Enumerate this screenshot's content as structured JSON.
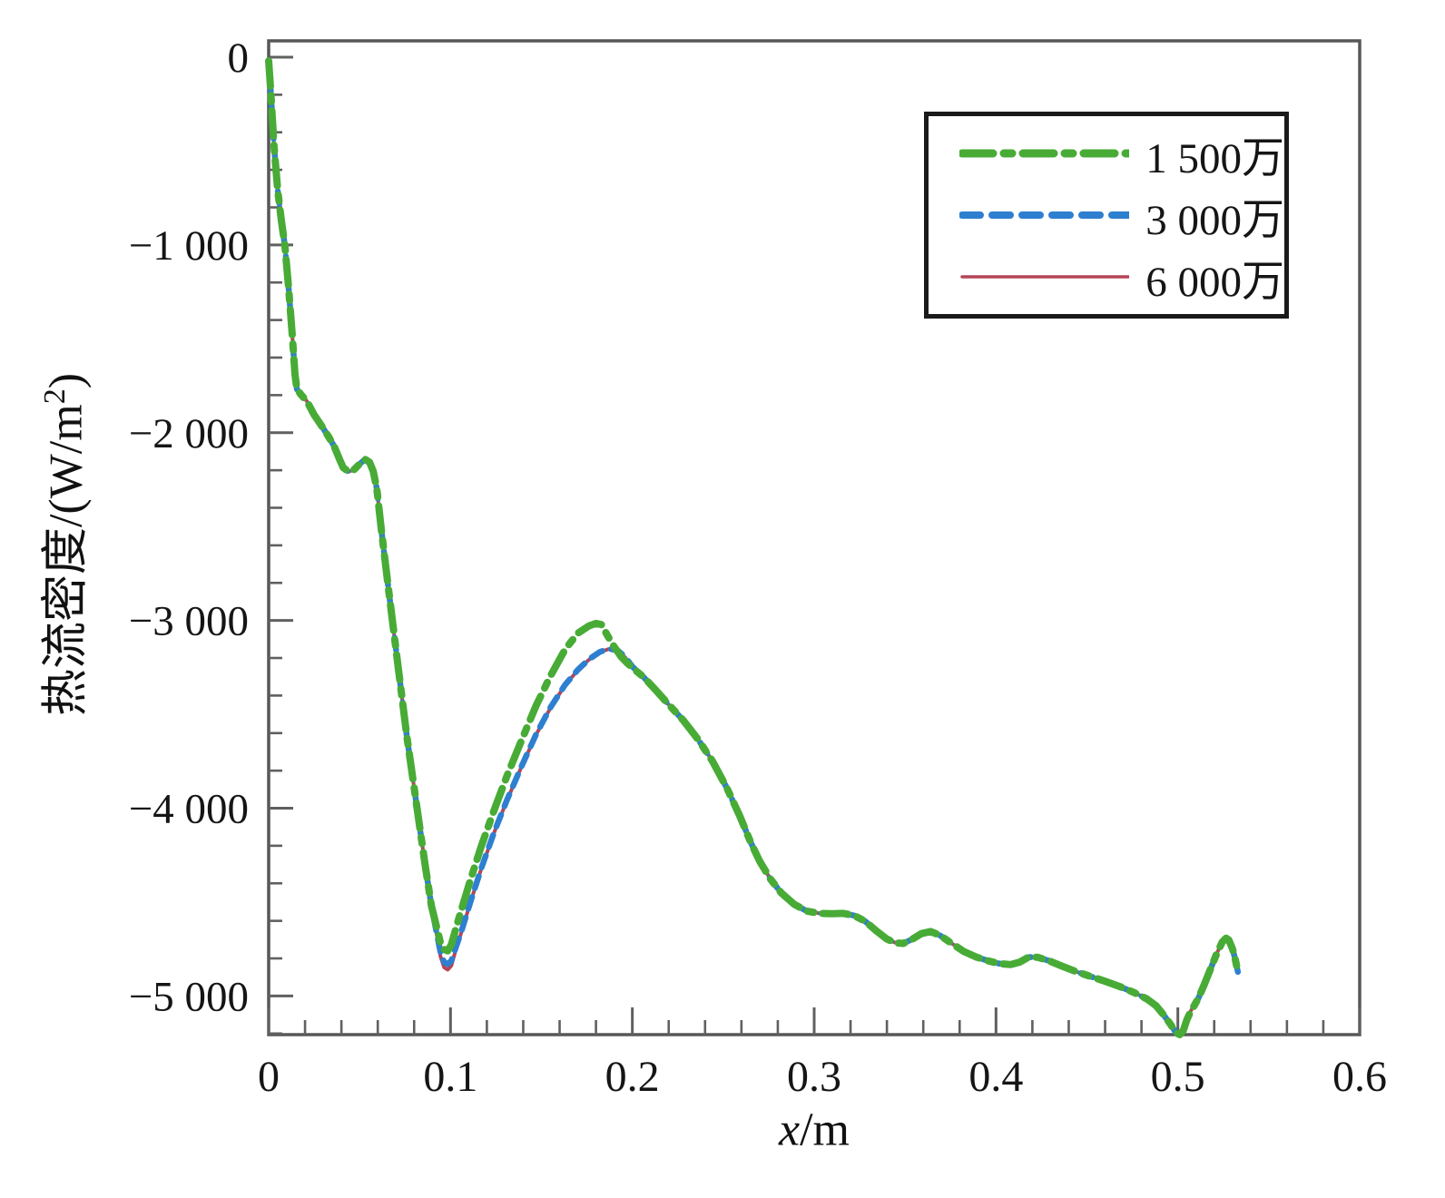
{
  "chart_data": {
    "type": "line",
    "title": "",
    "xlabel": "x/m",
    "ylabel": "热流密度/(W/m²)",
    "xlim": [
      0,
      0.6
    ],
    "ylim": [
      -5206,
      87
    ],
    "grid": false,
    "legend_position": "top-right",
    "x_axis": {
      "major_ticks": [
        {
          "value": 0,
          "label": "0"
        },
        {
          "value": 0.1,
          "label": "0.1"
        },
        {
          "value": 0.2,
          "label": "0.2"
        },
        {
          "value": 0.3,
          "label": "0.3"
        },
        {
          "value": 0.4,
          "label": "0.4"
        },
        {
          "value": 0.5,
          "label": "0.5"
        },
        {
          "value": 0.6,
          "label": "0.6"
        }
      ],
      "minor_tick_step": 0.02
    },
    "y_axis": {
      "major_ticks": [
        {
          "value": 0,
          "label": "0"
        },
        {
          "value": -1000,
          "label": "−1 000"
        },
        {
          "value": -2000,
          "label": "−2 000"
        },
        {
          "value": -3000,
          "label": "−3 000"
        },
        {
          "value": -4000,
          "label": "−4 000"
        },
        {
          "value": -5000,
          "label": "−5 000"
        }
      ],
      "minor_tick_step": 200
    },
    "segments": {
      "head": [
        [
          0.0,
          -20
        ],
        [
          0.001,
          -160
        ],
        [
          0.003,
          -480
        ],
        [
          0.005,
          -710
        ],
        [
          0.007,
          -870
        ],
        [
          0.009,
          -1010
        ],
        [
          0.011,
          -1230
        ],
        [
          0.013,
          -1480
        ],
        [
          0.0145,
          -1690
        ],
        [
          0.0155,
          -1768
        ],
        [
          0.018,
          -1800
        ],
        [
          0.021,
          -1832
        ],
        [
          0.025,
          -1905
        ],
        [
          0.029,
          -1962
        ],
        [
          0.033,
          -2022
        ],
        [
          0.036,
          -2072
        ],
        [
          0.039,
          -2142
        ],
        [
          0.041,
          -2186
        ],
        [
          0.044,
          -2208
        ],
        [
          0.047,
          -2196
        ],
        [
          0.05,
          -2167
        ],
        [
          0.053,
          -2142
        ],
        [
          0.0555,
          -2158
        ],
        [
          0.0575,
          -2205
        ],
        [
          0.0595,
          -2300
        ],
        [
          0.062,
          -2520
        ],
        [
          0.066,
          -2840
        ],
        [
          0.071,
          -3230
        ],
        [
          0.076,
          -3620
        ],
        [
          0.081,
          -3960
        ],
        [
          0.086,
          -4300
        ],
        [
          0.0895,
          -4520
        ]
      ],
      "tail": [
        [
          0.206,
          -3300
        ],
        [
          0.213,
          -3372
        ],
        [
          0.22,
          -3448
        ],
        [
          0.228,
          -3532
        ],
        [
          0.236,
          -3632
        ],
        [
          0.244,
          -3748
        ],
        [
          0.252,
          -3892
        ],
        [
          0.259,
          -4040
        ],
        [
          0.265,
          -4180
        ],
        [
          0.27,
          -4282
        ],
        [
          0.276,
          -4378
        ],
        [
          0.282,
          -4452
        ],
        [
          0.289,
          -4512
        ],
        [
          0.296,
          -4548
        ],
        [
          0.303,
          -4560
        ],
        [
          0.31,
          -4562
        ],
        [
          0.316,
          -4560
        ],
        [
          0.322,
          -4572
        ],
        [
          0.328,
          -4602
        ],
        [
          0.334,
          -4652
        ],
        [
          0.34,
          -4697
        ],
        [
          0.345,
          -4718
        ],
        [
          0.349,
          -4720
        ],
        [
          0.354,
          -4697
        ],
        [
          0.359,
          -4668
        ],
        [
          0.364,
          -4657
        ],
        [
          0.369,
          -4676
        ],
        [
          0.375,
          -4716
        ],
        [
          0.382,
          -4762
        ],
        [
          0.389,
          -4792
        ],
        [
          0.396,
          -4814
        ],
        [
          0.402,
          -4828
        ],
        [
          0.408,
          -4833
        ],
        [
          0.413,
          -4820
        ],
        [
          0.418,
          -4793
        ],
        [
          0.423,
          -4794
        ],
        [
          0.429,
          -4812
        ],
        [
          0.436,
          -4840
        ],
        [
          0.444,
          -4870
        ],
        [
          0.452,
          -4896
        ],
        [
          0.46,
          -4922
        ],
        [
          0.468,
          -4950
        ],
        [
          0.476,
          -4982
        ],
        [
          0.483,
          -5016
        ],
        [
          0.488,
          -5052
        ],
        [
          0.492,
          -5098
        ],
        [
          0.496,
          -5152
        ],
        [
          0.499,
          -5196
        ],
        [
          0.501,
          -5206
        ],
        [
          0.503,
          -5184
        ],
        [
          0.505,
          -5126
        ],
        [
          0.5075,
          -5072
        ],
        [
          0.509,
          -5052
        ],
        [
          0.5115,
          -5008
        ],
        [
          0.5145,
          -4940
        ],
        [
          0.518,
          -4856
        ],
        [
          0.5215,
          -4772
        ],
        [
          0.5245,
          -4712
        ],
        [
          0.5265,
          -4692
        ],
        [
          0.528,
          -4702
        ],
        [
          0.53,
          -4748
        ],
        [
          0.5315,
          -4802
        ],
        [
          0.533,
          -4872
        ]
      ]
    },
    "series": [
      {
        "name": "1 500万",
        "color": "#48ab36",
        "style": "dash-dot",
        "line_width": 8,
        "dash": "28 10 7 10",
        "legend_stroke": 9,
        "legend_dash": "34 12 9 12",
        "mid": [
          [
            0.092,
            -4618
          ],
          [
            0.0945,
            -4718
          ],
          [
            0.0965,
            -4752
          ],
          [
            0.0985,
            -4760
          ],
          [
            0.1005,
            -4726
          ],
          [
            0.103,
            -4640
          ],
          [
            0.106,
            -4540
          ],
          [
            0.111,
            -4380
          ],
          [
            0.117,
            -4200
          ],
          [
            0.124,
            -4010
          ],
          [
            0.131,
            -3830
          ],
          [
            0.139,
            -3640
          ],
          [
            0.147,
            -3455
          ],
          [
            0.155,
            -3295
          ],
          [
            0.163,
            -3155
          ],
          [
            0.17,
            -3068
          ],
          [
            0.176,
            -3030
          ],
          [
            0.18,
            -3016
          ],
          [
            0.183,
            -3022
          ],
          [
            0.186,
            -3075
          ],
          [
            0.19,
            -3140
          ],
          [
            0.194,
            -3195
          ],
          [
            0.197,
            -3225
          ],
          [
            0.2,
            -3252
          ]
        ]
      },
      {
        "name": "3 000万",
        "color": "#2e7fd0",
        "style": "dashed",
        "line_width": 6.5,
        "dash": "14 10",
        "legend_stroke": 8,
        "legend_dash": "20 13",
        "mid": [
          [
            0.092,
            -4645
          ],
          [
            0.0945,
            -4768
          ],
          [
            0.0965,
            -4820
          ],
          [
            0.0985,
            -4830
          ],
          [
            0.1005,
            -4812
          ],
          [
            0.103,
            -4740
          ],
          [
            0.106,
            -4655
          ],
          [
            0.111,
            -4498
          ],
          [
            0.117,
            -4318
          ],
          [
            0.124,
            -4128
          ],
          [
            0.131,
            -3958
          ],
          [
            0.139,
            -3778
          ],
          [
            0.147,
            -3608
          ],
          [
            0.155,
            -3463
          ],
          [
            0.163,
            -3343
          ],
          [
            0.17,
            -3263
          ],
          [
            0.176,
            -3208
          ],
          [
            0.182,
            -3168
          ],
          [
            0.187,
            -3150
          ],
          [
            0.192,
            -3160
          ],
          [
            0.196,
            -3194
          ],
          [
            0.2,
            -3246
          ]
        ]
      },
      {
        "name": "6 000万",
        "color": "#b64456",
        "style": "solid",
        "line_width": 4,
        "dash": "",
        "legend_stroke": 3.5,
        "legend_dash": "",
        "mid": [
          [
            0.092,
            -4650
          ],
          [
            0.0945,
            -4790
          ],
          [
            0.0965,
            -4848
          ],
          [
            0.0985,
            -4860
          ],
          [
            0.1005,
            -4838
          ],
          [
            0.103,
            -4752
          ],
          [
            0.106,
            -4660
          ],
          [
            0.111,
            -4500
          ],
          [
            0.117,
            -4320
          ],
          [
            0.124,
            -4130
          ],
          [
            0.131,
            -3960
          ],
          [
            0.139,
            -3780
          ],
          [
            0.147,
            -3610
          ],
          [
            0.155,
            -3465
          ],
          [
            0.163,
            -3345
          ],
          [
            0.17,
            -3265
          ],
          [
            0.176,
            -3210
          ],
          [
            0.182,
            -3170
          ],
          [
            0.187,
            -3152
          ],
          [
            0.192,
            -3162
          ],
          [
            0.196,
            -3196
          ],
          [
            0.2,
            -3248
          ]
        ]
      }
    ]
  },
  "ui": {
    "ylabel_prefix": "热流密度/(W/m",
    "ylabel_sup": "2",
    "ylabel_close": ")",
    "xlabel_var": "x",
    "xlabel_rest": "/m",
    "axis_color": "#575757",
    "tick_color": "#606060",
    "label_color": "#151515"
  }
}
